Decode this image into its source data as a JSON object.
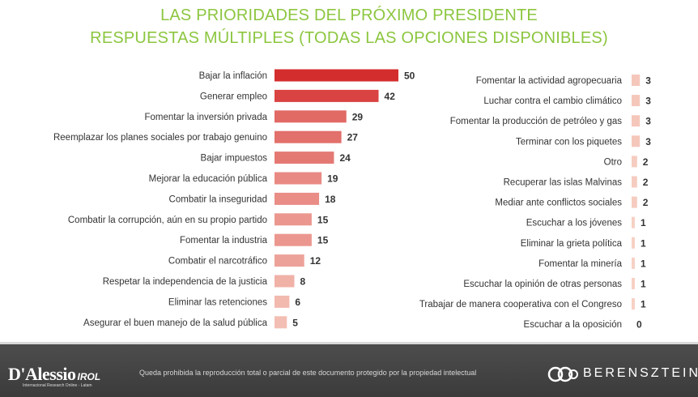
{
  "title_line1": "LAS PRIORIDADES DEL PRÓXIMO PRESIDENTE",
  "title_line2": "RESPUESTAS MÚLTIPLES (TODAS LAS OPCIONES DISPONIBLES)",
  "colors": {
    "title": "#8cc63f",
    "bar_max": "#d42d2d",
    "bar_min": "#f9d9cc"
  },
  "chart_data": [
    {
      "type": "bar",
      "orientation": "horizontal",
      "categories": [
        "Bajar la inflación",
        "Generar empleo",
        "Fomentar la inversión privada",
        "Reemplazar los planes sociales por trabajo genuino",
        "Bajar impuestos",
        "Mejorar la educación pública",
        "Combatir la inseguridad",
        "Combatir la corrupción, aún en su propio partido",
        "Fomentar la industria",
        "Combatir el narcotráfico",
        "Respetar la independencia de la justicia",
        "Eliminar las retenciones",
        "Asegurar el buen manejo de la salud pública"
      ],
      "values": [
        50,
        42,
        29,
        27,
        24,
        19,
        18,
        15,
        15,
        12,
        8,
        6,
        5
      ],
      "data_labels": true
    },
    {
      "type": "bar",
      "orientation": "horizontal",
      "categories": [
        "Fomentar la actividad agropecuaria",
        "Luchar contra el cambio climático",
        "Fomentar la producción de petróleo y gas",
        "Terminar con los piquetes",
        "Otro",
        "Recuperar las islas Malvinas",
        "Mediar ante conflictos sociales",
        "Escuchar a los jóvenes",
        "Eliminar la grieta política",
        "Fomentar la minería",
        "Escuchar la opinión de otras personas",
        "Trabajar de manera cooperativa con el Congreso",
        "Escuchar a la oposición"
      ],
      "values": [
        3,
        3,
        3,
        3,
        2,
        2,
        2,
        1,
        1,
        1,
        1,
        1,
        0
      ],
      "data_labels": true
    }
  ],
  "footer": {
    "logo_left": "D'Alessio",
    "logo_left_suffix": "IROL",
    "logo_left_sub": "Internacional Research Online - Latam",
    "notice": "Queda prohibida la reproducción total o parcial de este documento protegido por la propiedad intelectual",
    "logo_right": "BERENSZTEIN"
  }
}
